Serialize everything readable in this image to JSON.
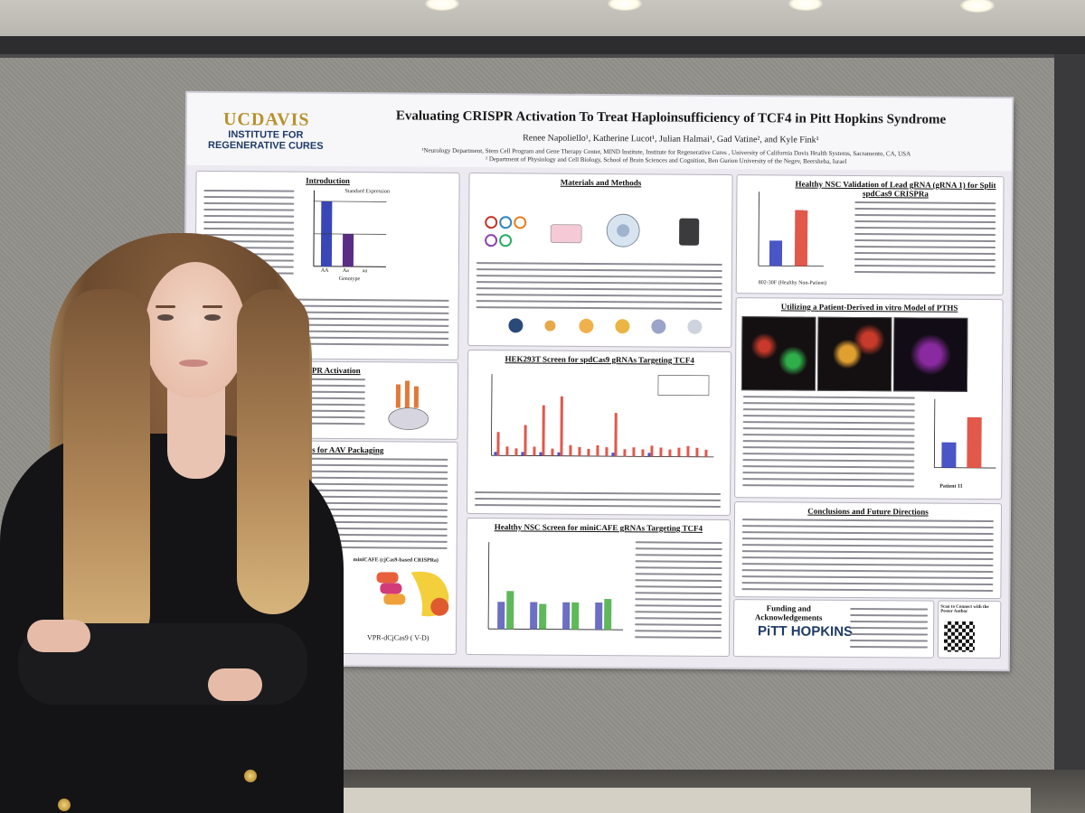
{
  "poster": {
    "logo_uc": "UCDAVIS",
    "logo_institute": "INSTITUTE FOR REGENERATIVE CURES",
    "title": "Evaluating CRISPR Activation To Treat Haploinsufficiency of TCF4 in Pitt Hopkins Syndrome",
    "authors": "Renee Napoliello¹, Katherine Lucot¹, Julian Halmai¹, Gad Vatine², and Kyle Fink¹",
    "affiliation_1": "¹Neurology Department, Stem Cell Program and Gene Therapy Center, MIND Institute, Institute for Regenerative Cures , University of California Davis Health Systems, Sacramento, CA, USA",
    "affiliation_2": "² Department of Physiology and Cell Biology, School of Brain Sciences and Cognition, Ben Gurion University of the Negev, Beersheba, Israel",
    "sections": {
      "introduction": "Introduction",
      "crispr_activation": "CRISPR Activation",
      "aav_packaging": "Two Methods for AAV Packaging",
      "materials": "Materials and Methods",
      "hek_screen": "HEK293T Screen for spdCas9 gRNAs Targeting TCF4",
      "nsc_screen": "Healthy NSC Screen for miniCAFE gRNAs Targeting TCF4",
      "validation": "Healthy NSC Validation of Lead gRNA (gRNA 1) for Split spdCas9 CRISPRa",
      "patient_model": "Utilizing a Patient-Derived in vitro Model of PTHS",
      "conclusions": "Conclusions and Future Directions",
      "funding": "Funding and Acknowledgements"
    },
    "labels": {
      "genotype": "Genotype",
      "aa1": "AA",
      "aa2": "Aa",
      "aa3": "aa",
      "standard_expression": "Standard Expression",
      "patient11": "Patient 11",
      "healthy": "802-30F (Healthy Non-Patient)",
      "minicafe": "miniCAFE (cjCas9-based CRISPRa)",
      "vpr": "VPR-dCjCas9 ( V-D)",
      "pitt": "PiTT HOPKINS",
      "scan": "Scan to Connect with the Poster Author"
    }
  },
  "icons": {
    "light": "ceiling-light-icon",
    "qr": "qr-code-icon"
  },
  "colors": {
    "felt_wall": "#96948f",
    "poster_bg": "#eceaf0",
    "ucdavis_gold": "#b8922d",
    "ucdavis_navy": "#1f3a68",
    "control_bar": "#4a55c6",
    "treatment_bar": "#e2584b"
  }
}
